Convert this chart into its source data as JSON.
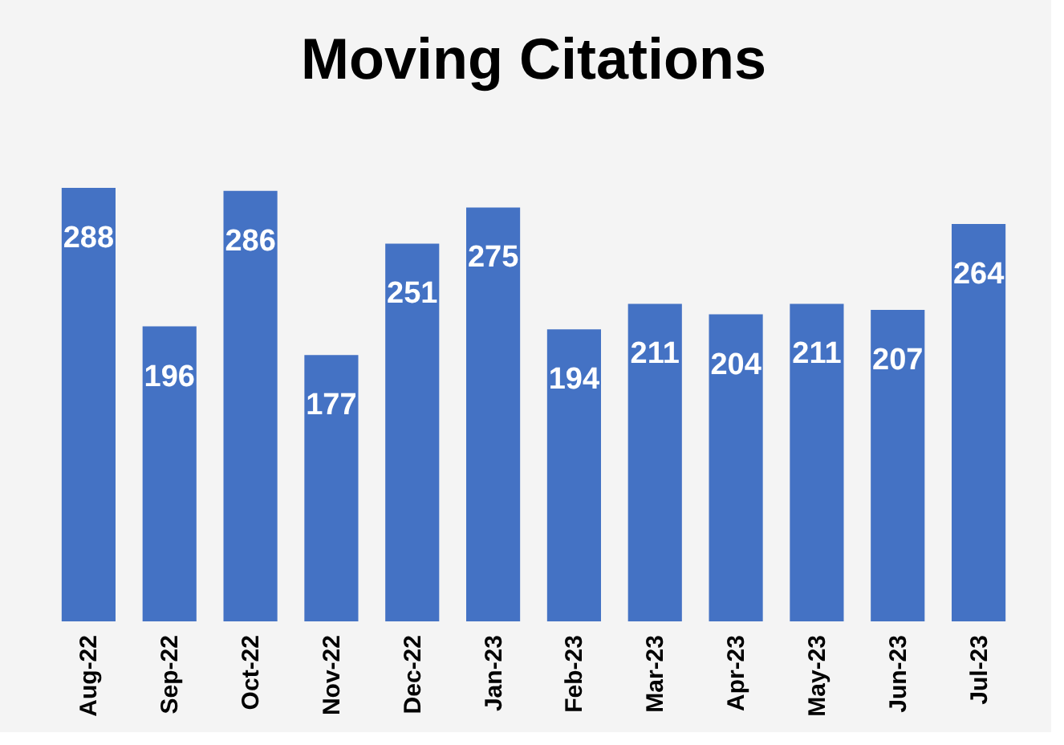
{
  "chart_data": {
    "type": "bar",
    "title": "Moving Citations",
    "categories": [
      "Aug-22",
      "Sep-22",
      "Oct-22",
      "Nov-22",
      "Dec-22",
      "Jan-23",
      "Feb-23",
      "Mar-23",
      "Apr-23",
      "May-23",
      "Jun-23",
      "Jul-23"
    ],
    "values": [
      288,
      196,
      286,
      177,
      251,
      275,
      194,
      211,
      204,
      211,
      207,
      264
    ],
    "color": "#4472c4",
    "data_labels": true,
    "grid": false,
    "tick_labels": "x"
  }
}
